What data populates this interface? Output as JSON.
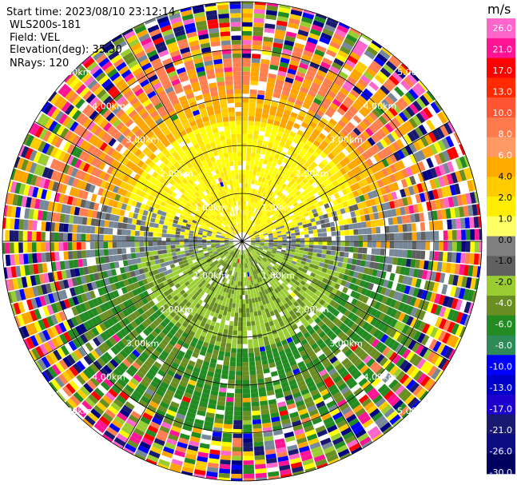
{
  "info": {
    "start_time": "Start time: 2023/08/10 23:12:14",
    "instrument": "WLS200s-181",
    "field": "Field: VEL",
    "elevation": "Elevation(deg): 35.30",
    "nrays": "NRays: 120"
  },
  "chart_data": {
    "type": "heatmap",
    "projection": "polar-ppi",
    "field": "VEL",
    "nrays": 120,
    "elevation_deg": 35.3,
    "range_rings": [
      {
        "label": "1.00km",
        "value": 1
      },
      {
        "label": "2.00km",
        "value": 2
      },
      {
        "label": "3.00km",
        "value": 3
      },
      {
        "label": "4.00km",
        "value": 4
      },
      {
        "label": "5.00km",
        "value": 5
      }
    ],
    "colorbar": {
      "unit": "m/s",
      "ticks": [
        "26.0",
        "21.0",
        "17.0",
        "13.0",
        "10.0",
        "8.0",
        "6.0",
        "4.0",
        "2.0",
        "1.0",
        "0.0",
        "-1.0",
        "-2.0",
        "-4.0",
        "-6.0",
        "-8.0",
        "-10.0",
        "-13.0",
        "-17.0",
        "-21.0",
        "-26.0",
        "-30.0"
      ],
      "colors": [
        "#ff66cc",
        "#ff1493",
        "#ff0000",
        "#ff2a00",
        "#ff5533",
        "#ff7a4d",
        "#ff9966",
        "#ffaa00",
        "#ffcc00",
        "#ffee00",
        "#ffff66",
        "#808080",
        "#606060",
        "#9acd32",
        "#6b8e23",
        "#228b22",
        "#2e8b57",
        "#0000ff",
        "#0000cd",
        "#1e00cc",
        "#191970",
        "#0d0d80",
        "#000060"
      ]
    }
  }
}
